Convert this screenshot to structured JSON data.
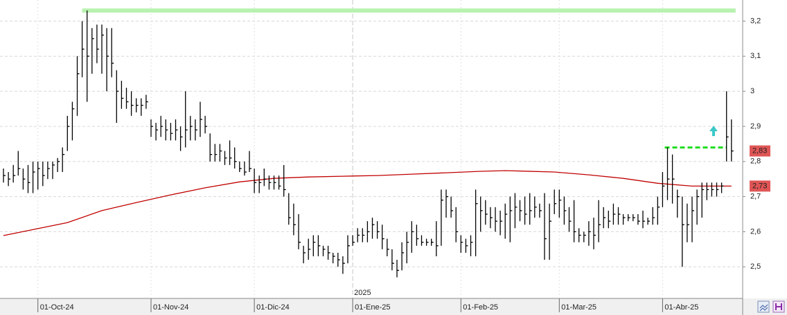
{
  "chart_data": {
    "type": "ohlc",
    "color": "#000000",
    "categories": [
      null,
      null,
      null,
      null,
      null,
      null,
      null,
      "01-Oct-24",
      null,
      null,
      null,
      null,
      null,
      null,
      null,
      null,
      null,
      null,
      null,
      null,
      null,
      null,
      null,
      null,
      null,
      null,
      null,
      null,
      null,
      null,
      "01-Nov-24",
      null,
      null,
      null,
      null,
      null,
      null,
      null,
      null,
      null,
      null,
      null,
      null,
      null,
      null,
      null,
      null,
      null,
      null,
      null,
      null,
      "01-Dic-24",
      null,
      null,
      null,
      null,
      null,
      null,
      null,
      null,
      null,
      null,
      null,
      null,
      null,
      null,
      null,
      null,
      null,
      null,
      null,
      "01-Ene-25",
      null,
      null,
      null,
      null,
      null,
      null,
      null,
      null,
      null,
      null,
      null,
      null,
      null,
      null,
      null,
      null,
      null,
      null,
      null,
      null,
      null,
      "01-Feb-25",
      null,
      null,
      null,
      null,
      null,
      null,
      null,
      null,
      null,
      null,
      null,
      null,
      null,
      null,
      null,
      null,
      null,
      null,
      null,
      "01-Mar-25",
      null,
      null,
      null,
      null,
      null,
      null,
      null,
      null,
      null,
      null,
      null,
      null,
      null,
      null,
      null,
      null,
      null,
      null,
      null,
      null,
      "01-Abr-25",
      null,
      null,
      null,
      null,
      null,
      null,
      null,
      null,
      null,
      null,
      null,
      null,
      null,
      null
    ],
    "high": [
      2.78,
      2.77,
      2.79,
      2.83,
      2.78,
      2.79,
      2.8,
      2.8,
      2.8,
      2.8,
      2.8,
      2.81,
      2.84,
      2.93,
      2.97,
      3.1,
      3.2,
      3.23,
      3.18,
      3.19,
      3.19,
      3.18,
      3.18,
      3.06,
      3.03,
      3.01,
      3.0,
      2.98,
      2.98,
      2.99,
      2.92,
      2.91,
      2.93,
      2.92,
      2.91,
      2.92,
      2.9,
      3.0,
      2.93,
      2.92,
      2.97,
      2.93,
      2.88,
      2.85,
      2.85,
      2.83,
      2.86,
      2.84,
      2.8,
      2.8,
      2.83,
      2.78,
      2.76,
      2.78,
      2.76,
      2.76,
      2.76,
      2.79,
      2.71,
      2.68,
      2.65,
      2.56,
      2.58,
      2.59,
      2.59,
      2.56,
      2.56,
      2.54,
      2.54,
      2.53,
      2.59,
      2.59,
      2.61,
      2.61,
      2.63,
      2.64,
      2.63,
      2.62,
      2.58,
      2.55,
      2.52,
      2.57,
      2.6,
      2.63,
      2.62,
      2.59,
      2.58,
      2.58,
      2.63,
      2.72,
      2.72,
      2.7,
      2.67,
      2.59,
      2.58,
      2.59,
      2.72,
      2.7,
      2.69,
      2.67,
      2.67,
      2.66,
      2.68,
      2.7,
      2.71,
      2.69,
      2.7,
      2.71,
      2.7,
      2.68,
      2.71,
      2.68,
      2.72,
      2.72,
      2.7,
      2.67,
      2.69,
      2.61,
      2.6,
      2.63,
      2.64,
      2.69,
      2.67,
      2.66,
      2.68,
      2.67,
      2.65,
      2.65,
      2.65,
      2.65,
      2.66,
      2.64,
      2.67,
      2.7,
      2.77,
      2.84,
      2.82,
      2.72,
      2.7,
      2.68,
      2.7,
      2.72,
      2.74,
      2.74,
      2.74,
      2.74,
      2.74,
      3.0,
      2.92
    ],
    "low": [
      2.74,
      2.73,
      2.74,
      2.76,
      2.72,
      2.71,
      2.71,
      2.72,
      2.73,
      2.75,
      2.75,
      2.77,
      2.77,
      2.83,
      2.86,
      2.93,
      3.04,
      2.97,
      3.05,
      3.08,
      3.05,
      3.0,
      3.04,
      2.91,
      2.95,
      2.95,
      2.93,
      2.94,
      2.93,
      2.95,
      2.87,
      2.86,
      2.87,
      2.86,
      2.86,
      2.86,
      2.83,
      2.84,
      2.86,
      2.86,
      2.87,
      2.88,
      2.8,
      2.8,
      2.8,
      2.79,
      2.79,
      2.78,
      2.77,
      2.76,
      2.77,
      2.71,
      2.71,
      2.73,
      2.72,
      2.72,
      2.72,
      2.7,
      2.62,
      2.59,
      2.55,
      2.51,
      2.52,
      2.53,
      2.53,
      2.53,
      2.52,
      2.51,
      2.5,
      2.48,
      2.51,
      2.56,
      2.57,
      2.57,
      2.57,
      2.58,
      2.58,
      2.55,
      2.53,
      2.49,
      2.47,
      2.49,
      2.51,
      2.54,
      2.56,
      2.56,
      2.56,
      2.56,
      2.53,
      2.56,
      2.64,
      2.64,
      2.57,
      2.54,
      2.54,
      2.53,
      2.53,
      2.6,
      2.62,
      2.61,
      2.6,
      2.59,
      2.58,
      2.57,
      2.61,
      2.63,
      2.62,
      2.62,
      2.64,
      2.64,
      2.52,
      2.52,
      2.65,
      2.64,
      2.62,
      2.6,
      2.57,
      2.57,
      2.57,
      2.56,
      2.55,
      2.57,
      2.61,
      2.61,
      2.62,
      2.62,
      2.62,
      2.63,
      2.63,
      2.62,
      2.61,
      2.62,
      2.62,
      2.62,
      2.67,
      2.69,
      2.68,
      2.64,
      2.5,
      2.57,
      2.57,
      2.62,
      2.64,
      2.69,
      2.7,
      2.7,
      2.71,
      2.8,
      2.8
    ],
    "close": [
      2.76,
      2.75,
      2.76,
      2.78,
      2.75,
      2.74,
      2.77,
      2.78,
      2.76,
      2.78,
      2.79,
      2.8,
      2.82,
      2.9,
      2.95,
      3.05,
      3.12,
      3.1,
      3.15,
      3.12,
      3.16,
      3.1,
      3.08,
      3.0,
      2.98,
      2.97,
      2.96,
      2.96,
      2.96,
      2.97,
      2.9,
      2.89,
      2.9,
      2.89,
      2.88,
      2.89,
      2.87,
      2.89,
      2.9,
      2.89,
      2.92,
      2.9,
      2.82,
      2.82,
      2.83,
      2.81,
      2.81,
      2.8,
      2.78,
      2.77,
      2.78,
      2.74,
      2.74,
      2.75,
      2.74,
      2.74,
      2.73,
      2.72,
      2.64,
      2.62,
      2.57,
      2.54,
      2.55,
      2.57,
      2.56,
      2.55,
      2.54,
      2.53,
      2.52,
      2.51,
      2.56,
      2.57,
      2.59,
      2.59,
      2.6,
      2.62,
      2.6,
      2.58,
      2.55,
      2.51,
      2.49,
      2.54,
      2.57,
      2.6,
      2.58,
      2.57,
      2.57,
      2.57,
      2.56,
      2.69,
      2.7,
      2.66,
      2.6,
      2.57,
      2.56,
      2.57,
      2.68,
      2.66,
      2.65,
      2.64,
      2.63,
      2.63,
      2.65,
      2.66,
      2.67,
      2.66,
      2.65,
      2.66,
      2.67,
      2.66,
      2.58,
      2.63,
      2.68,
      2.69,
      2.66,
      2.63,
      2.6,
      2.59,
      2.59,
      2.6,
      2.59,
      2.62,
      2.64,
      2.63,
      2.65,
      2.65,
      2.64,
      2.64,
      2.64,
      2.63,
      2.63,
      2.63,
      2.64,
      2.67,
      2.73,
      2.75,
      2.75,
      2.7,
      2.62,
      2.62,
      2.66,
      2.7,
      2.72,
      2.72,
      2.72,
      2.72,
      2.73,
      2.87,
      2.83
    ],
    "moving_average": {
      "color": "#c00000",
      "x": [
        0,
        13,
        20,
        27,
        34,
        41,
        48,
        55,
        62,
        69,
        76,
        83,
        90,
        97,
        102,
        112,
        119,
        126,
        133,
        140,
        148
      ],
      "values": [
        2.589,
        2.626,
        2.66,
        2.683,
        2.705,
        2.725,
        2.742,
        2.752,
        2.756,
        2.758,
        2.76,
        2.764,
        2.768,
        2.772,
        2.774,
        2.77,
        2.762,
        2.752,
        2.738,
        2.73,
        2.73
      ]
    },
    "resistance": {
      "value": 3.23,
      "x": [
        16,
        148
      ],
      "color": "#b8f2b0"
    },
    "support": {
      "value": 2.84,
      "x": [
        135,
        147
      ],
      "color": "#22dd22"
    },
    "price_labels": [
      {
        "value": 2.83,
        "label": "2,83"
      },
      {
        "value": 2.73,
        "label": "2,73"
      }
    ],
    "price_label_color": "#e05555",
    "year_marker": {
      "index": 71,
      "label": "2025"
    },
    "ylim": [
      2.41,
      3.26
    ],
    "yticks": [
      {
        "value": 2.5,
        "label": "2,5"
      },
      {
        "value": 2.6,
        "label": "2,6"
      },
      {
        "value": 2.7,
        "label": "2,7"
      },
      {
        "value": 2.8,
        "label": "2,8"
      },
      {
        "value": 2.9,
        "label": "2,9"
      },
      3,
      {
        "value": 3.1,
        "label": "3,1"
      },
      {
        "value": 3.2,
        "label": "3,2"
      }
    ],
    "grid": true
  }
}
